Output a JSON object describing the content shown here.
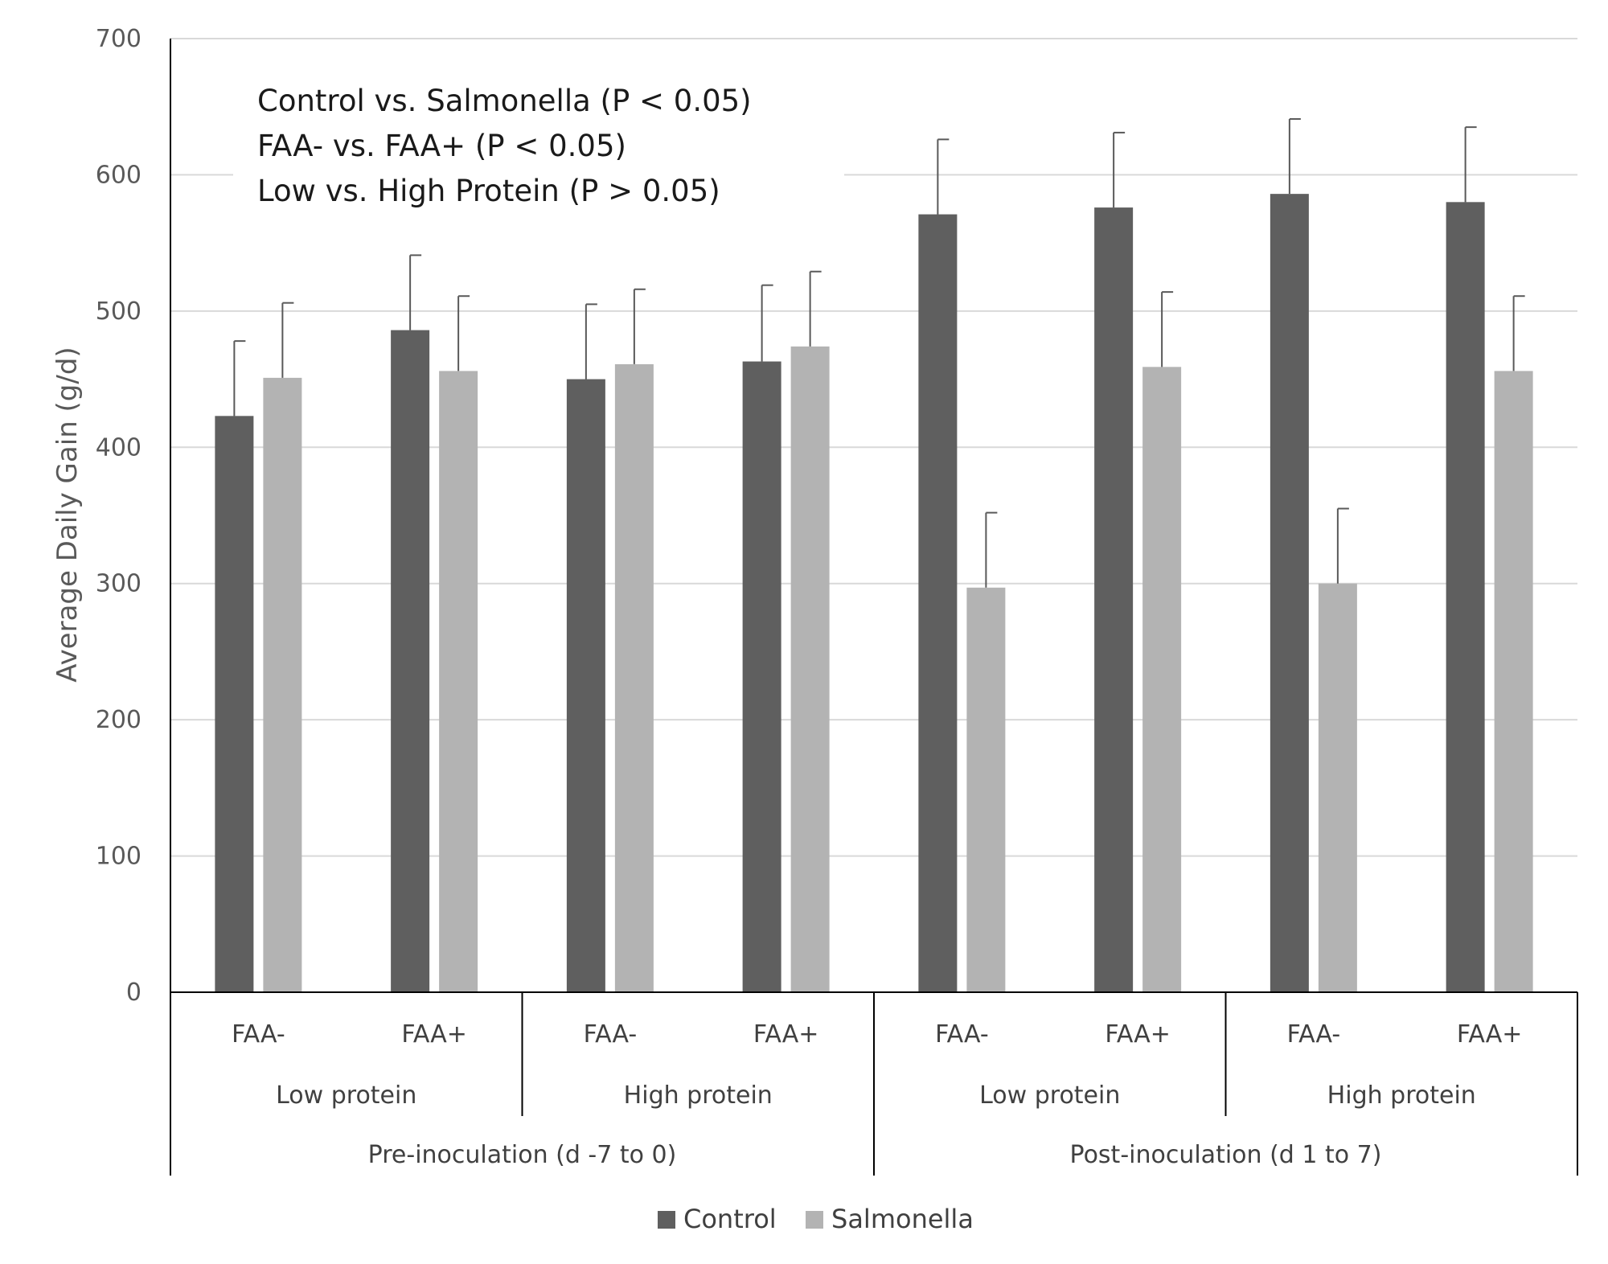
{
  "chart_data": {
    "type": "bar",
    "title": "",
    "ylabel": "Average Daily Gain (g/d)",
    "ylim": [
      0,
      700
    ],
    "yticks": [
      0,
      100,
      200,
      300,
      400,
      500,
      600,
      700
    ],
    "grid": true,
    "legend_position": "bottom",
    "categories": [
      "FAA-",
      "FAA+",
      "FAA-",
      "FAA+",
      "FAA-",
      "FAA+",
      "FAA-",
      "FAA+"
    ],
    "protein_groups": [
      "Low protein",
      "High protein",
      "Low protein",
      "High protein"
    ],
    "period_groups": [
      "Pre-inoculation (d -7 to 0)",
      "Post-inoculation (d 1 to 7)"
    ],
    "series": [
      {
        "name": "Control",
        "color": "#5f5f5f",
        "values": [
          423,
          486,
          450,
          463,
          571,
          576,
          586,
          580
        ],
        "errors": [
          55,
          55,
          55,
          56,
          55,
          55,
          55,
          55
        ]
      },
      {
        "name": "Salmonella",
        "color": "#b3b3b3",
        "values": [
          451,
          456,
          461,
          474,
          297,
          459,
          300,
          456
        ],
        "errors": [
          55,
          55,
          55,
          55,
          55,
          55,
          55,
          55
        ]
      }
    ],
    "annotations": [
      "Control vs. Salmonella (P < 0.05)",
      "FAA- vs. FAA+ (P < 0.05)",
      "Low  vs. High Protein (P > 0.05)"
    ]
  }
}
